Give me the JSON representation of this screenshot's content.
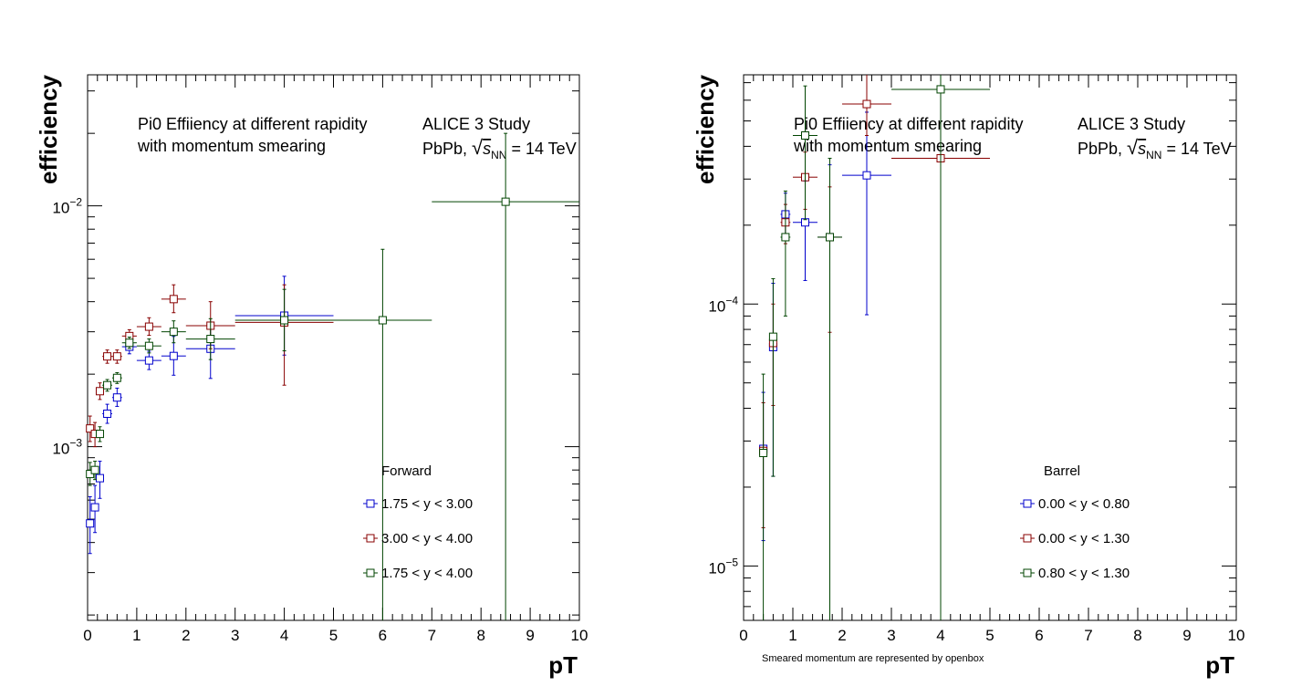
{
  "chart_data": [
    {
      "type": "scatter",
      "xlabel": "pT",
      "ylabel": "efficiency",
      "xlim": [
        0,
        10
      ],
      "ylim": [
        0.00019,
        0.035
      ],
      "yscale": "log",
      "grid": false,
      "x_ticks": [
        "0",
        "1",
        "2",
        "3",
        "4",
        "5",
        "6",
        "7",
        "8",
        "9",
        "10"
      ],
      "y_ticks": [
        {
          "value": 0.001,
          "mant": "10",
          "exp": "−3"
        },
        {
          "value": 0.01,
          "mant": "10",
          "exp": "−2"
        }
      ],
      "notes": {
        "line1": "Pi0 Effiiency at different rapidity",
        "line2": "with momentum smearing",
        "study": "ALICE 3 Study",
        "system_prefix": "PbPb, ",
        "sqrt": "√",
        "s": "s",
        "nn": "NN",
        "energy": " = 14 TeV"
      },
      "legend": {
        "title": "Forward",
        "placement": "bottom-right"
      },
      "series": [
        {
          "name": "1.75 < y < 3.00",
          "color": "#0000cc",
          "points": [
            {
              "x": 0.05,
              "y": 0.00048,
              "ex": 0.05,
              "elo": 0.00036,
              "ehi": 0.00062
            },
            {
              "x": 0.15,
              "y": 0.00056,
              "ex": 0.05,
              "elo": 0.00044,
              "ehi": 0.00069
            },
            {
              "x": 0.25,
              "y": 0.00074,
              "ex": 0.05,
              "elo": 0.00061,
              "ehi": 0.00087
            },
            {
              "x": 0.4,
              "y": 0.00137,
              "ex": 0.1,
              "elo": 0.00125,
              "ehi": 0.0015
            },
            {
              "x": 0.6,
              "y": 0.0016,
              "ex": 0.1,
              "elo": 0.00147,
              "ehi": 0.00175
            },
            {
              "x": 0.85,
              "y": 0.0026,
              "ex": 0.15,
              "elo": 0.00243,
              "ehi": 0.00278
            },
            {
              "x": 1.25,
              "y": 0.00228,
              "ex": 0.25,
              "elo": 0.00209,
              "ehi": 0.00249
            },
            {
              "x": 1.75,
              "y": 0.00238,
              "ex": 0.25,
              "elo": 0.00198,
              "ehi": 0.00287
            },
            {
              "x": 2.5,
              "y": 0.00255,
              "ex": 0.5,
              "elo": 0.00192,
              "ehi": 0.00325
            },
            {
              "x": 4.0,
              "y": 0.0035,
              "ex": 1.0,
              "elo": 0.0024,
              "ehi": 0.0051
            }
          ]
        },
        {
          "name": "3.00 < y < 4.00",
          "color": "#880000",
          "points": [
            {
              "x": 0.05,
              "y": 0.00119,
              "ex": 0.05,
              "elo": 0.00105,
              "ehi": 0.00134
            },
            {
              "x": 0.15,
              "y": 0.00113,
              "ex": 0.05,
              "elo": 0.001,
              "ehi": 0.00126
            },
            {
              "x": 0.25,
              "y": 0.0017,
              "ex": 0.05,
              "elo": 0.00157,
              "ehi": 0.00184
            },
            {
              "x": 0.4,
              "y": 0.00237,
              "ex": 0.1,
              "elo": 0.00222,
              "ehi": 0.00252
            },
            {
              "x": 0.6,
              "y": 0.00237,
              "ex": 0.1,
              "elo": 0.00222,
              "ehi": 0.00252
            },
            {
              "x": 0.85,
              "y": 0.00288,
              "ex": 0.15,
              "elo": 0.0027,
              "ehi": 0.00306
            },
            {
              "x": 1.25,
              "y": 0.00315,
              "ex": 0.25,
              "elo": 0.0029,
              "ehi": 0.00343
            },
            {
              "x": 1.75,
              "y": 0.0041,
              "ex": 0.25,
              "elo": 0.0036,
              "ehi": 0.0047
            },
            {
              "x": 2.5,
              "y": 0.00318,
              "ex": 0.5,
              "elo": 0.00255,
              "ehi": 0.004
            },
            {
              "x": 4.0,
              "y": 0.00328,
              "ex": 1.0,
              "elo": 0.0018,
              "ehi": 0.0047
            }
          ]
        },
        {
          "name": "1.75 < y < 4.00",
          "color": "#004400",
          "points": [
            {
              "x": 0.05,
              "y": 0.00077,
              "ex": 0.05,
              "elo": 0.00069,
              "ehi": 0.00086
            },
            {
              "x": 0.15,
              "y": 0.0008,
              "ex": 0.05,
              "elo": 0.00073,
              "ehi": 0.00087
            },
            {
              "x": 0.25,
              "y": 0.00113,
              "ex": 0.05,
              "elo": 0.00105,
              "ehi": 0.00121
            },
            {
              "x": 0.4,
              "y": 0.0018,
              "ex": 0.1,
              "elo": 0.0017,
              "ehi": 0.0019
            },
            {
              "x": 0.6,
              "y": 0.00193,
              "ex": 0.1,
              "elo": 0.00183,
              "ehi": 0.00203
            },
            {
              "x": 0.85,
              "y": 0.0027,
              "ex": 0.15,
              "elo": 0.00256,
              "ehi": 0.00285
            },
            {
              "x": 1.25,
              "y": 0.00262,
              "ex": 0.25,
              "elo": 0.00245,
              "ehi": 0.0028
            },
            {
              "x": 1.75,
              "y": 0.003,
              "ex": 0.25,
              "elo": 0.0027,
              "ehi": 0.00333
            },
            {
              "x": 2.5,
              "y": 0.0028,
              "ex": 0.5,
              "elo": 0.0023,
              "ehi": 0.0034
            },
            {
              "x": 4.0,
              "y": 0.00335,
              "ex": 1.0,
              "elo": 0.0025,
              "ehi": 0.0045
            },
            {
              "x": 6.0,
              "y": 0.00335,
              "ex": 1.0,
              "elo": 0.00019,
              "ehi": 0.0066
            },
            {
              "x": 8.5,
              "y": 0.0104,
              "ex": 1.5,
              "elo": 0.00019,
              "ehi": 0.02
            }
          ]
        }
      ]
    },
    {
      "type": "scatter",
      "xlabel": "pT",
      "ylabel": "efficiency",
      "xlim": [
        0,
        10
      ],
      "ylim": [
        6.2e-06,
        0.00075
      ],
      "yscale": "log",
      "grid": false,
      "x_ticks": [
        "0",
        "1",
        "2",
        "3",
        "4",
        "5",
        "6",
        "7",
        "8",
        "9",
        "10"
      ],
      "y_ticks": [
        {
          "value": 1e-05,
          "mant": "10",
          "exp": "−5"
        },
        {
          "value": 0.0001,
          "mant": "10",
          "exp": "−4"
        }
      ],
      "notes": {
        "line1": "Pi0 Effiiency at different rapidity",
        "line2": "with momentum smearing",
        "study": "ALICE 3 Study",
        "system_prefix": "PbPb, ",
        "sqrt": "√",
        "s": "s",
        "nn": "NN",
        "energy": " = 14 TeV"
      },
      "footnote": "Smeared momentum are represented by openbox",
      "legend": {
        "title": "Barrel",
        "placement": "bottom-right"
      },
      "series": [
        {
          "name": "0.00 < y < 0.80",
          "color": "#0000cc",
          "points": [
            {
              "x": 0.4,
              "y": 2.8e-05,
              "ex": 0.05,
              "elo": 1.25e-05,
              "ehi": 4.6e-05
            },
            {
              "x": 0.6,
              "y": 6.85e-05,
              "ex": 0.05,
              "elo": 2.2e-05,
              "ehi": 0.00012
            },
            {
              "x": 0.85,
              "y": 0.00022,
              "ex": 0.1,
              "elo": 0.00018,
              "ehi": 0.000265
            },
            {
              "x": 1.25,
              "y": 0.000205,
              "ex": 0.25,
              "elo": 0.000123,
              "ehi": 0.000295
            },
            {
              "x": 1.75,
              "y": 0.00018,
              "ex": 0.25,
              "elo": 5.4e-06,
              "ehi": 0.00034
            },
            {
              "x": 2.5,
              "y": 0.00031,
              "ex": 0.5,
              "elo": 9.1e-05,
              "ehi": 0.00054
            }
          ]
        },
        {
          "name": "0.00 < y < 1.30",
          "color": "#880000",
          "points": [
            {
              "x": 0.4,
              "y": 2.75e-05,
              "ex": 0.05,
              "elo": 1.4e-05,
              "ehi": 4.2e-05
            },
            {
              "x": 0.6,
              "y": 7.1e-05,
              "ex": 0.05,
              "elo": 4.1e-05,
              "ehi": 0.0001
            },
            {
              "x": 0.85,
              "y": 0.000205,
              "ex": 0.1,
              "elo": 0.00017,
              "ehi": 0.00024
            },
            {
              "x": 1.25,
              "y": 0.000305,
              "ex": 0.25,
              "elo": 0.00023,
              "ehi": 0.00038
            },
            {
              "x": 1.75,
              "y": 0.00018,
              "ex": 0.25,
              "elo": 7.8e-05,
              "ehi": 0.00028
            },
            {
              "x": 2.5,
              "y": 0.00058,
              "ex": 0.5,
              "elo": 0.00044,
              "ehi": 0.00075
            },
            {
              "x": 4.0,
              "y": 0.00036,
              "ex": 1.0,
              "elo": 6.2e-06,
              "ehi": 0.00075
            }
          ]
        },
        {
          "name": "0.80 < y < 1.30",
          "color": "#004400",
          "points": [
            {
              "x": 0.4,
              "y": 2.7e-05,
              "ex": 0.05,
              "elo": 6.2e-06,
              "ehi": 5.4e-05
            },
            {
              "x": 0.6,
              "y": 7.5e-05,
              "ex": 0.05,
              "elo": 2.2e-05,
              "ehi": 0.000125
            },
            {
              "x": 0.85,
              "y": 0.00018,
              "ex": 0.1,
              "elo": 9e-05,
              "ehi": 0.00027
            },
            {
              "x": 1.25,
              "y": 0.00044,
              "ex": 0.25,
              "elo": 0.00021,
              "ehi": 0.00068
            },
            {
              "x": 1.75,
              "y": 0.00018,
              "ex": 0.25,
              "elo": 6.2e-06,
              "ehi": 0.00036
            },
            {
              "x": 4.0,
              "y": 0.00066,
              "ex": 1.0,
              "elo": 6.2e-06,
              "ehi": 0.00075
            }
          ]
        }
      ]
    }
  ]
}
